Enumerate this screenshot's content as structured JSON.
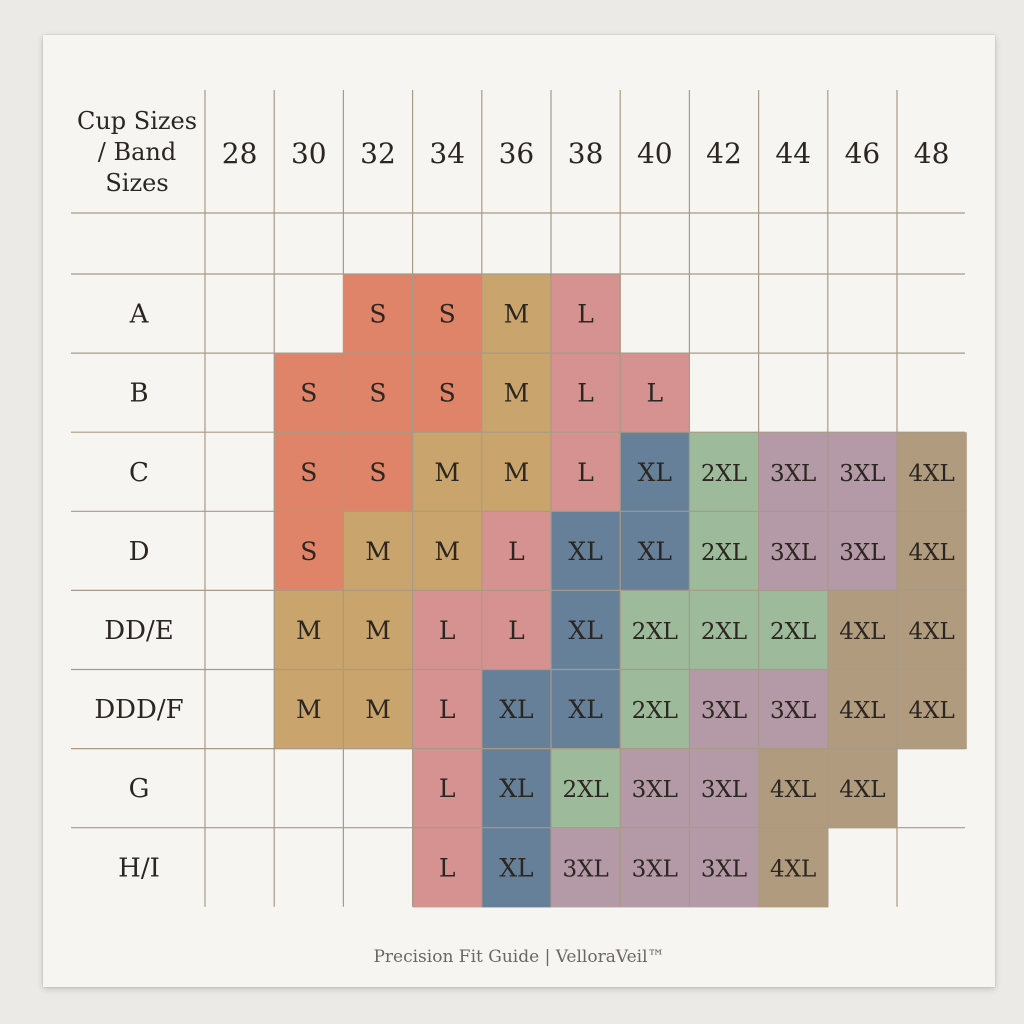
{
  "chart_data": {
    "type": "table",
    "title": "",
    "corner_header": [
      "Cup Sizes",
      "/ Band",
      "Sizes"
    ],
    "band_sizes": [
      "28",
      "30",
      "32",
      "34",
      "36",
      "38",
      "40",
      "42",
      "44",
      "46",
      "48"
    ],
    "cup_sizes": [
      "A",
      "B",
      "C",
      "D",
      "DD/E",
      "DDD/F",
      "G",
      "H/I"
    ],
    "size_grid": [
      [
        "",
        "",
        "S",
        "S",
        "M",
        "L",
        "",
        "",
        "",
        "",
        ""
      ],
      [
        "",
        "S",
        "S",
        "S",
        "M",
        "L",
        "L",
        "",
        "",
        "",
        ""
      ],
      [
        "",
        "S",
        "S",
        "M",
        "M",
        "L",
        "XL",
        "2XL",
        "3XL",
        "3XL",
        "4XL"
      ],
      [
        "",
        "S",
        "M",
        "M",
        "L",
        "XL",
        "XL",
        "2XL",
        "3XL",
        "3XL",
        "4XL"
      ],
      [
        "",
        "M",
        "M",
        "L",
        "L",
        "XL",
        "2XL",
        "2XL",
        "2XL",
        "4XL",
        "4XL"
      ],
      [
        "",
        "M",
        "M",
        "L",
        "XL",
        "XL",
        "2XL",
        "3XL",
        "3XL",
        "4XL",
        "4XL"
      ],
      [
        "",
        "",
        "",
        "L",
        "XL",
        "2XL",
        "3XL",
        "3XL",
        "4XL",
        "4XL",
        ""
      ],
      [
        "",
        "",
        "",
        "L",
        "XL",
        "3XL",
        "3XL",
        "3XL",
        "4XL",
        "",
        ""
      ]
    ],
    "size_colors": {
      "S": "#e08469",
      "M": "#c9a46c",
      "L": "#d69290",
      "XL": "#66809a",
      "2XL": "#9dba9b",
      "3XL": "#b499a6",
      "4XL": "#b09b7f"
    },
    "grid_line_color": "#a89a86"
  },
  "footer": {
    "text": "Precision Fit Guide | VelloraVeil™"
  }
}
